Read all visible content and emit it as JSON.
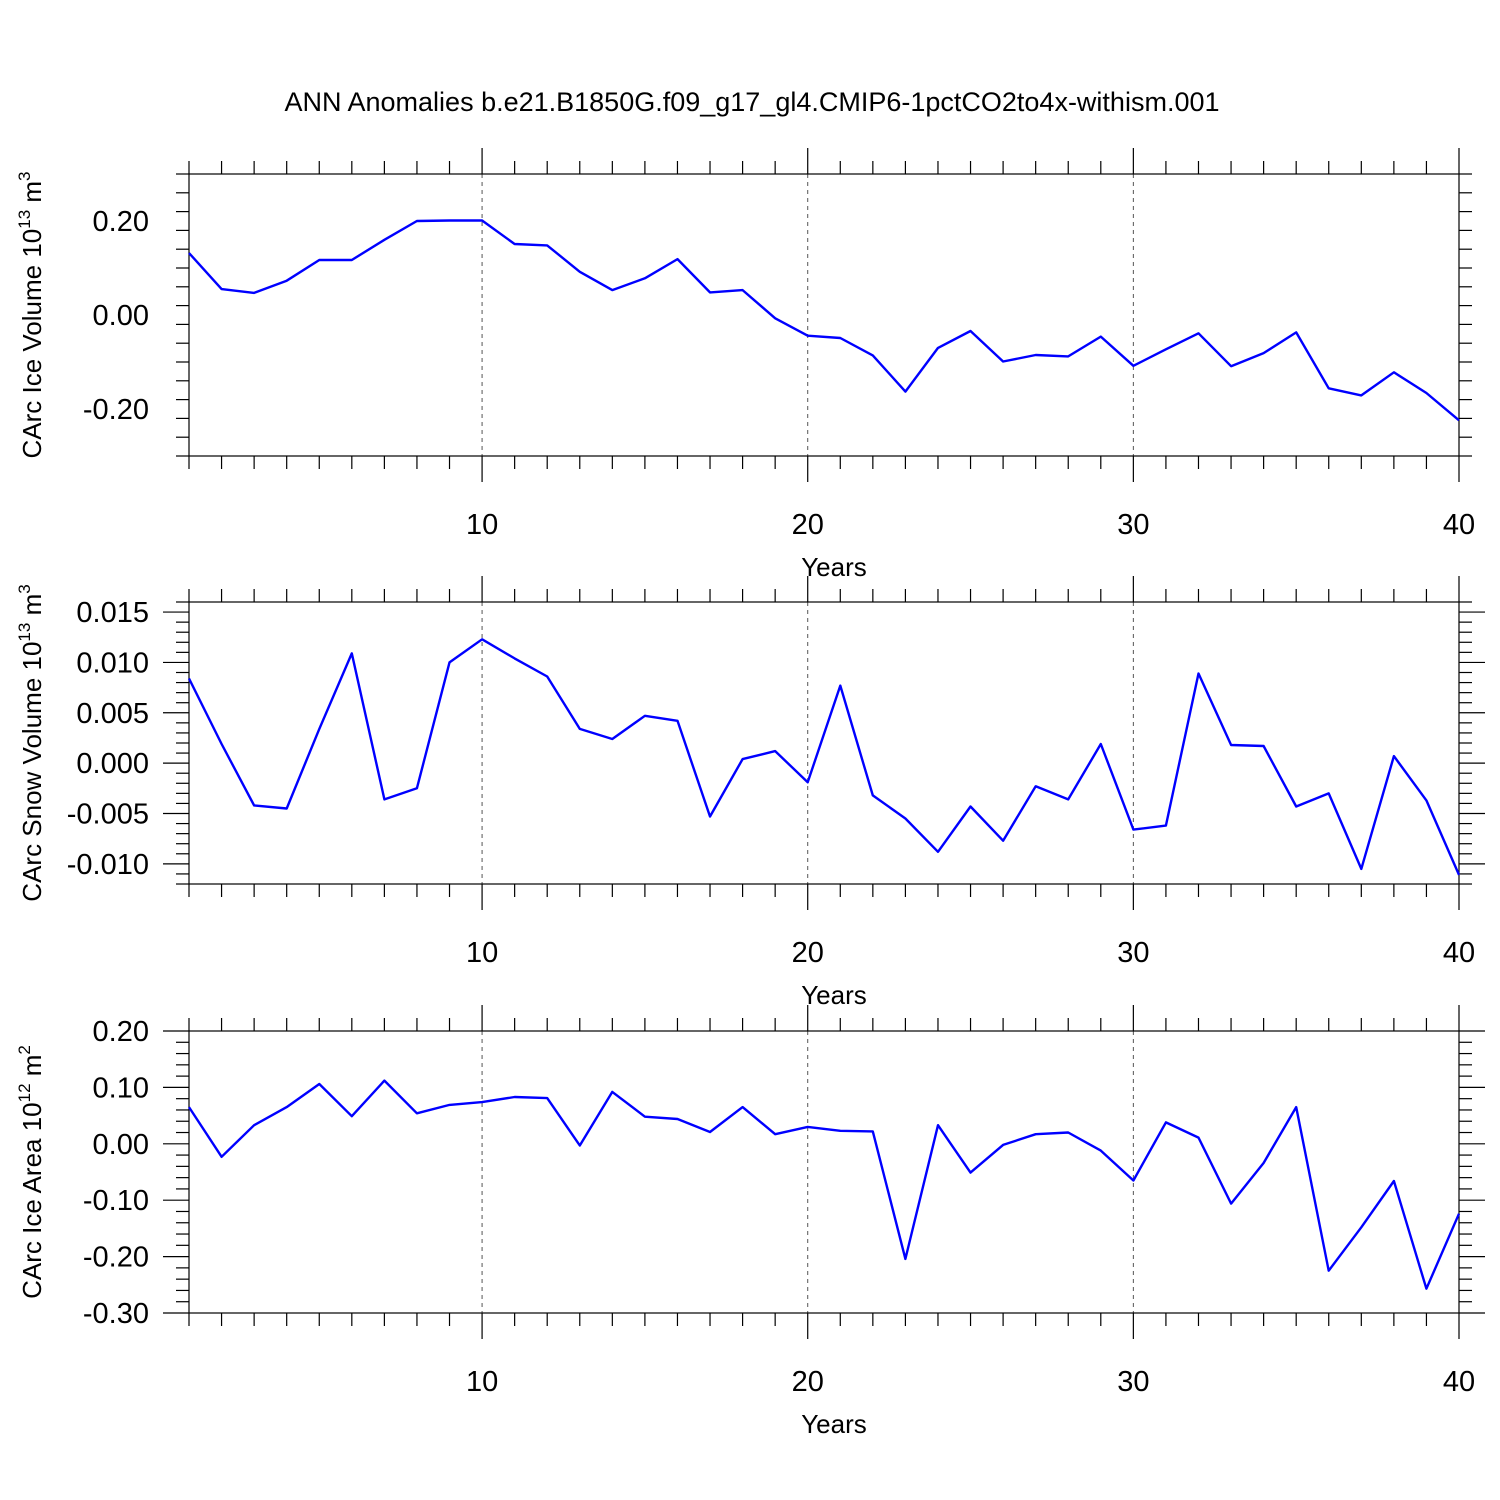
{
  "title": "ANN Anomalies b.e21.B1850G.f09_g17_gl4.CMIP6-1pctCO2to4x-withism.001",
  "colors": {
    "series": "#0000ff",
    "axis": "#000000",
    "grid": "#555555"
  },
  "chart_data": [
    {
      "type": "line",
      "title": "",
      "xlabel": "Years",
      "ylabel": {
        "text": "CArc Ice Volume 10",
        "sup": "13",
        "unit": "m",
        "unit_sup": "3"
      },
      "xlim": [
        1,
        40
      ],
      "ylim": [
        -0.3,
        0.3
      ],
      "xticks": [
        10,
        20,
        30,
        40
      ],
      "yticks": [
        -0.2,
        0.0,
        0.2
      ],
      "ytick_labels": [
        "-0.20",
        "0.00",
        "0.20"
      ],
      "grid_x": [
        10,
        20,
        30
      ],
      "x": [
        1,
        2,
        3,
        4,
        5,
        6,
        7,
        8,
        9,
        10,
        11,
        12,
        13,
        14,
        15,
        16,
        17,
        18,
        19,
        20,
        21,
        22,
        23,
        24,
        25,
        26,
        27,
        28,
        29,
        30,
        31,
        32,
        33,
        34,
        35,
        36,
        37,
        38,
        39,
        40
      ],
      "values": [
        0.132,
        0.055,
        0.047,
        0.073,
        0.117,
        0.117,
        0.16,
        0.2,
        0.201,
        0.201,
        0.151,
        0.148,
        0.092,
        0.053,
        0.078,
        0.119,
        0.048,
        0.053,
        -0.007,
        -0.044,
        -0.049,
        -0.086,
        -0.163,
        -0.07,
        -0.034,
        -0.099,
        -0.085,
        -0.088,
        -0.046,
        -0.108,
        -0.073,
        -0.039,
        -0.109,
        -0.081,
        -0.037,
        -0.156,
        -0.171,
        -0.122,
        -0.166,
        -0.224
      ]
    },
    {
      "type": "line",
      "title": "",
      "xlabel": "Years",
      "ylabel": {
        "text": "CArc Snow Volume 10",
        "sup": "13",
        "unit": "m",
        "unit_sup": "3"
      },
      "xlim": [
        1,
        40
      ],
      "ylim": [
        -0.012,
        0.016
      ],
      "xticks": [
        10,
        20,
        30,
        40
      ],
      "yticks": [
        -0.01,
        -0.005,
        0.0,
        0.005,
        0.01,
        0.015
      ],
      "ytick_labels": [
        "-0.010",
        "-0.005",
        "0.000",
        "0.005",
        "0.010",
        "0.015"
      ],
      "grid_x": [
        10,
        20,
        30
      ],
      "x": [
        1,
        2,
        3,
        4,
        5,
        6,
        7,
        8,
        9,
        10,
        11,
        12,
        13,
        14,
        15,
        16,
        17,
        18,
        19,
        20,
        21,
        22,
        23,
        24,
        25,
        26,
        27,
        28,
        29,
        30,
        31,
        32,
        33,
        34,
        35,
        36,
        37,
        38,
        39,
        40
      ],
      "values": [
        0.0084,
        0.0019,
        -0.0042,
        -0.0045,
        0.0034,
        0.0109,
        -0.0036,
        -0.0025,
        0.01,
        0.0123,
        0.0104,
        0.0086,
        0.0034,
        0.0024,
        0.0047,
        0.0042,
        -0.0053,
        0.0004,
        0.0012,
        -0.0019,
        0.0077,
        -0.0032,
        -0.0055,
        -0.0088,
        -0.0043,
        -0.0077,
        -0.0023,
        -0.0036,
        0.0019,
        -0.0066,
        -0.0062,
        0.0089,
        0.0018,
        0.0017,
        -0.0043,
        -0.003,
        -0.0105,
        0.0007,
        -0.0037,
        -0.0111
      ]
    },
    {
      "type": "line",
      "title": "",
      "xlabel": "Years",
      "ylabel": {
        "text": "CArc Ice Area 10",
        "sup": "12",
        "unit": "m",
        "unit_sup": "2"
      },
      "xlim": [
        1,
        40
      ],
      "ylim": [
        -0.3,
        0.2
      ],
      "xticks": [
        10,
        20,
        30,
        40
      ],
      "yticks": [
        -0.3,
        -0.2,
        -0.1,
        0.0,
        0.1,
        0.2
      ],
      "ytick_labels": [
        "-0.30",
        "-0.20",
        "-0.10",
        "0.00",
        "0.10",
        "0.20"
      ],
      "grid_x": [
        10,
        20,
        30
      ],
      "x": [
        1,
        2,
        3,
        4,
        5,
        6,
        7,
        8,
        9,
        10,
        11,
        12,
        13,
        14,
        15,
        16,
        17,
        18,
        19,
        20,
        21,
        22,
        23,
        24,
        25,
        26,
        27,
        28,
        29,
        30,
        31,
        32,
        33,
        34,
        35,
        36,
        37,
        38,
        39,
        40
      ],
      "values": [
        0.065,
        -0.023,
        0.033,
        0.065,
        0.106,
        0.049,
        0.112,
        0.054,
        0.069,
        0.074,
        0.083,
        0.081,
        -0.003,
        0.092,
        0.048,
        0.044,
        0.021,
        0.065,
        0.017,
        0.03,
        0.023,
        0.022,
        -0.204,
        0.033,
        -0.051,
        -0.002,
        0.017,
        0.02,
        -0.012,
        -0.065,
        0.038,
        0.011,
        -0.106,
        -0.034,
        0.065,
        -0.225,
        -0.148,
        -0.066,
        -0.257,
        -0.124
      ]
    }
  ]
}
